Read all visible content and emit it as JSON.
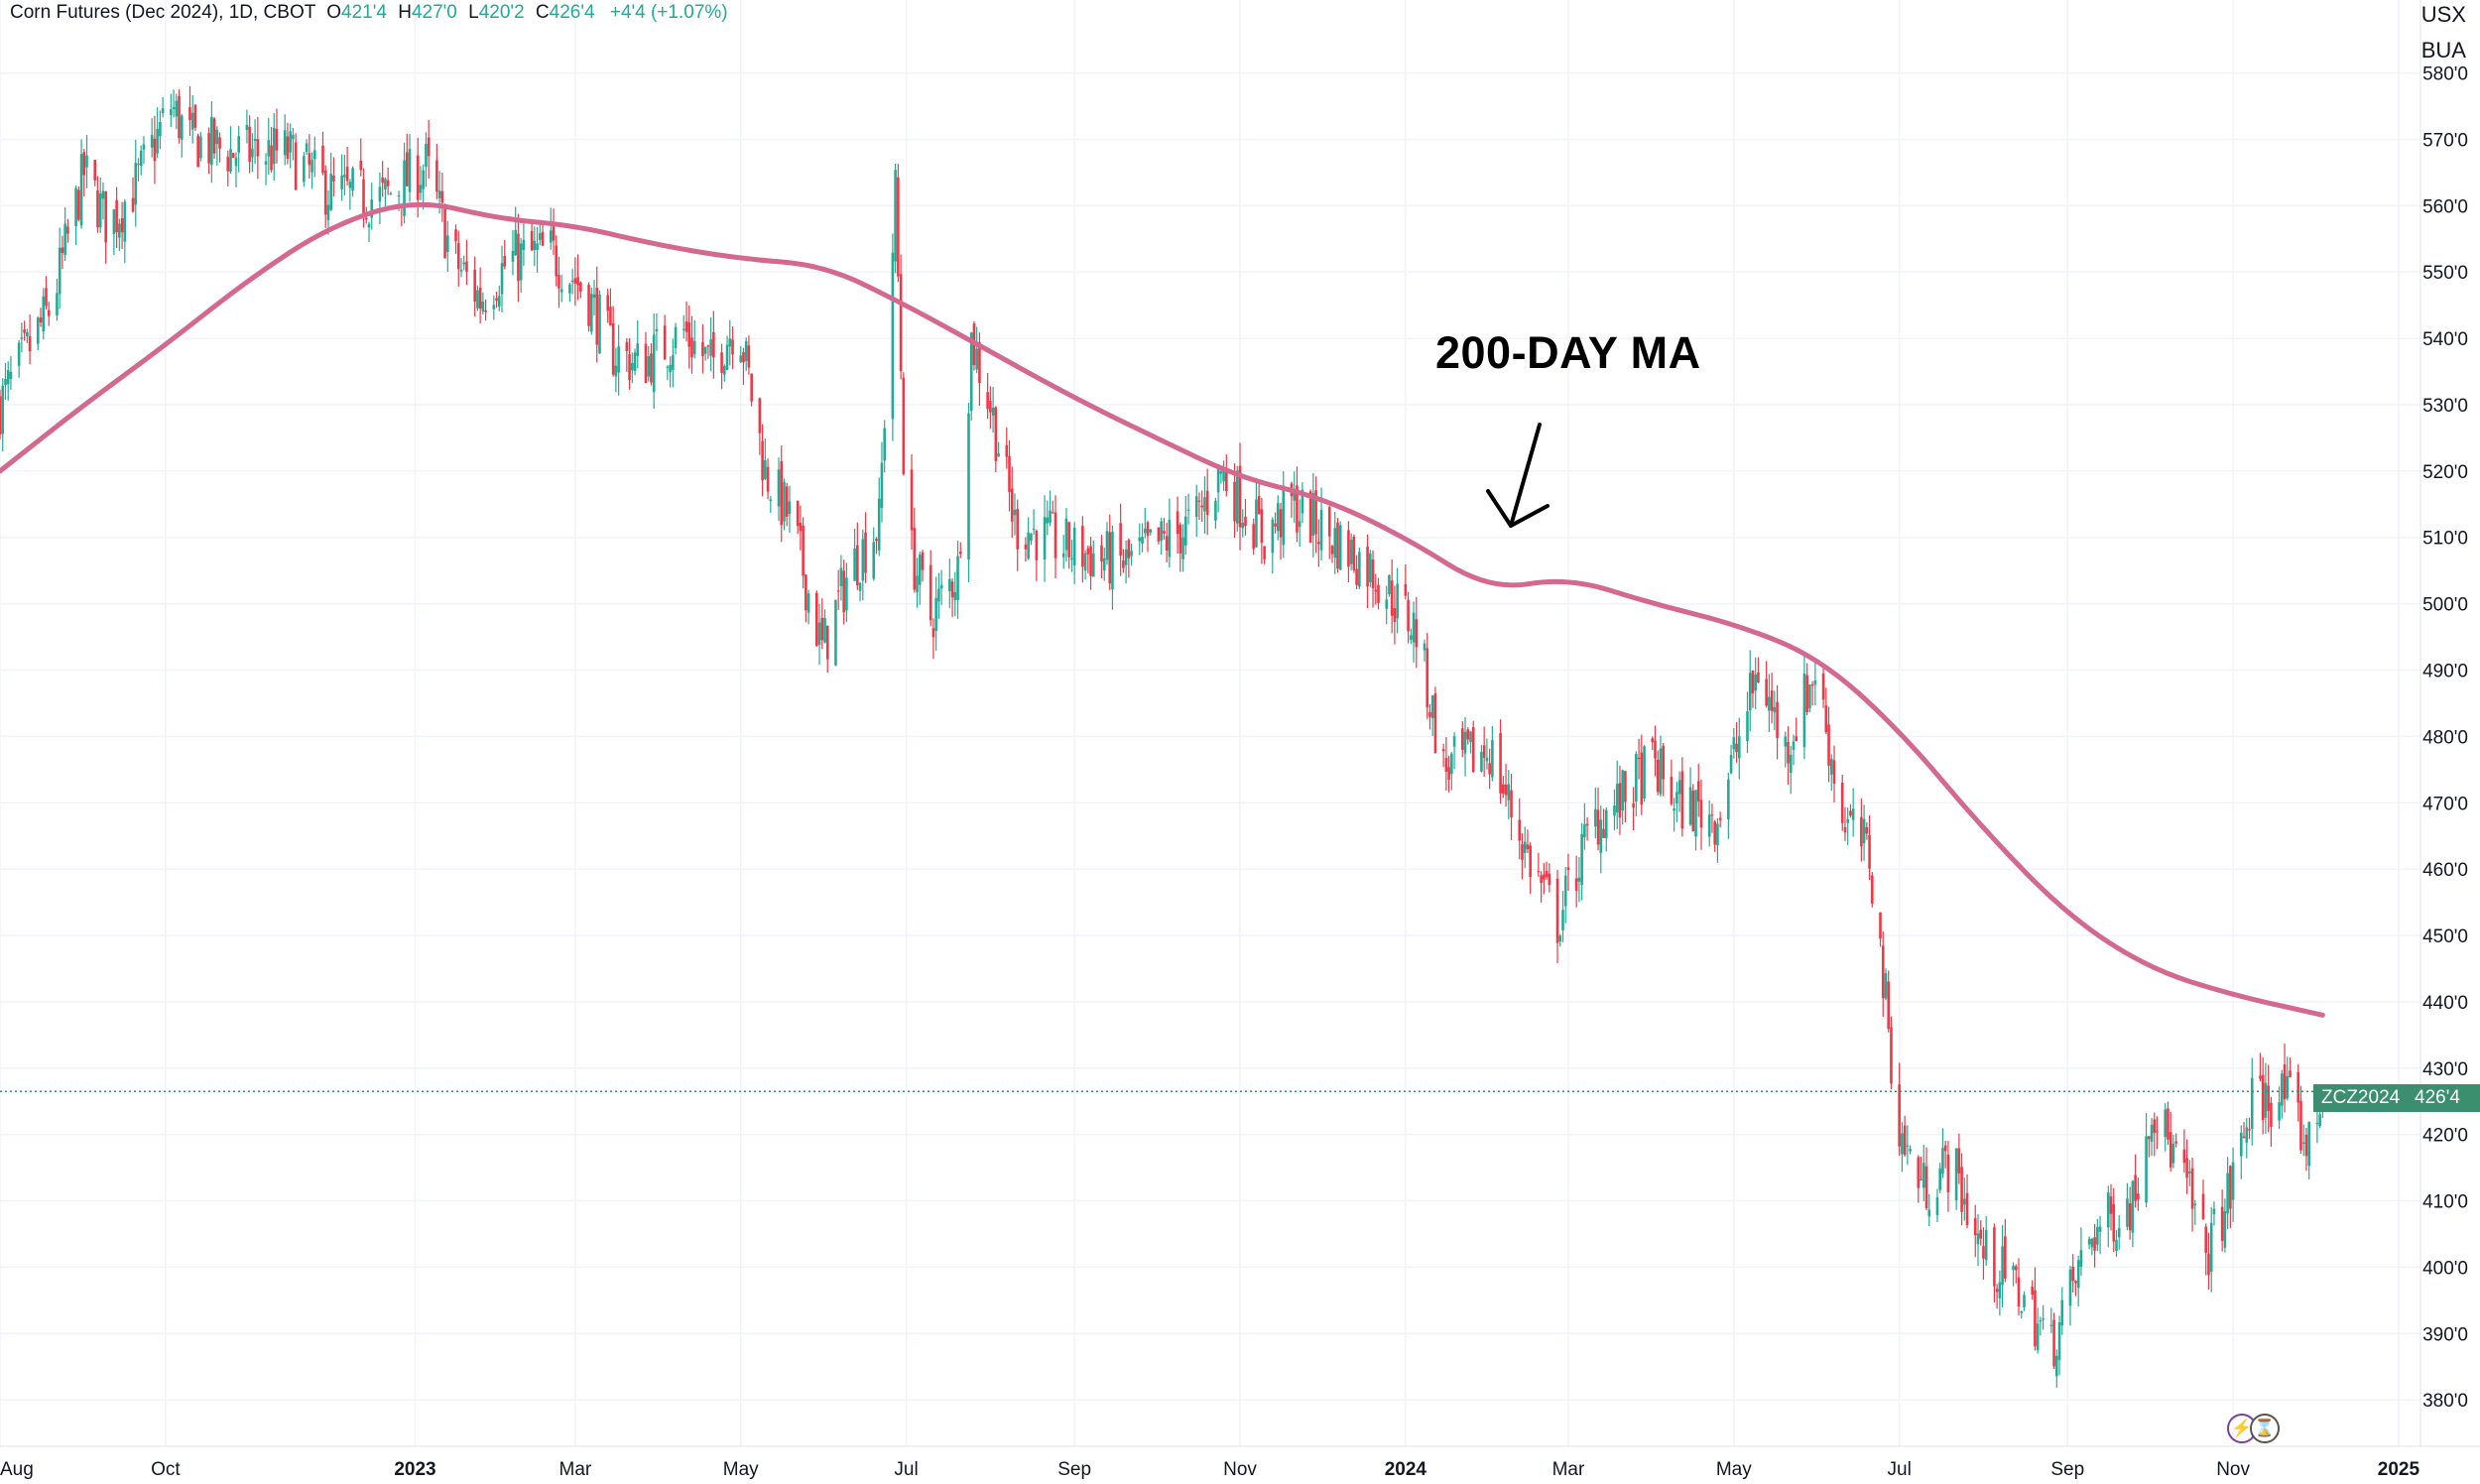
{
  "header": {
    "symbol_desc": "Corn Futures (Dec 2024), 1D, CBOT",
    "o_label": "O",
    "o_val": "421'4",
    "h_label": "H",
    "h_val": "427'0",
    "l_label": "L",
    "l_val": "420'2",
    "c_label": "C",
    "c_val": "426'4",
    "change": "+4'4 (+1.07%)"
  },
  "units": {
    "currency": "USX",
    "measure": "BUA"
  },
  "annotation": {
    "text": "200-DAY MA"
  },
  "price_tag": {
    "symbol": "ZCZ2024",
    "value": "426'4"
  },
  "colors": {
    "up": "#22ab94",
    "down": "#f23645",
    "ma": "#d4688f",
    "tag": "#3b8f6f",
    "grid": "#f0f3fa"
  },
  "icons": [
    "lightning-icon",
    "hourglass-icon"
  ],
  "chart_data": {
    "type": "candlestick",
    "title": "Corn Futures (Dec 2024), 1D, CBOT",
    "price_axis": {
      "ticks": [
        380,
        390,
        400,
        410,
        420,
        430,
        440,
        450,
        460,
        470,
        480,
        490,
        500,
        510,
        520,
        530,
        540,
        550,
        560,
        570,
        580
      ],
      "labels": [
        "380'0",
        "390'0",
        "400'0",
        "410'0",
        "420'0",
        "430'0",
        "440'0",
        "450'0",
        "460'0",
        "470'0",
        "480'0",
        "490'0",
        "500'0",
        "510'0",
        "520'0",
        "530'0",
        "540'0",
        "550'0",
        "560'0",
        "570'0",
        "580'0"
      ],
      "range": [
        373,
        591
      ]
    },
    "time_axis": {
      "range": [
        "2022-08-01",
        "2025-01-31"
      ],
      "ticks": [
        {
          "label": "Aug",
          "date": "2022-08-01"
        },
        {
          "label": "Oct",
          "date": "2022-10-01"
        },
        {
          "label": "2023",
          "date": "2023-01-01",
          "bold": true
        },
        {
          "label": "Mar",
          "date": "2023-03-01"
        },
        {
          "label": "May",
          "date": "2023-05-01"
        },
        {
          "label": "Jul",
          "date": "2023-07-01"
        },
        {
          "label": "Sep",
          "date": "2023-09-01"
        },
        {
          "label": "Nov",
          "date": "2023-11-01"
        },
        {
          "label": "2024",
          "date": "2024-01-01",
          "bold": true
        },
        {
          "label": "Mar",
          "date": "2024-03-01"
        },
        {
          "label": "May",
          "date": "2024-05-01"
        },
        {
          "label": "Jul",
          "date": "2024-07-01"
        },
        {
          "label": "Sep",
          "date": "2024-09-01"
        },
        {
          "label": "Nov",
          "date": "2024-11-01"
        },
        {
          "label": "2025",
          "date": "2025-01-01",
          "bold": true
        }
      ]
    },
    "last_close": 426.5,
    "price_path": [
      [
        "2022-08-01",
        530
      ],
      [
        "2022-08-20",
        545
      ],
      [
        "2022-09-01",
        565
      ],
      [
        "2022-09-10",
        557
      ],
      [
        "2022-09-20",
        563
      ],
      [
        "2022-10-03",
        575
      ],
      [
        "2022-10-10",
        570
      ],
      [
        "2022-10-25",
        568
      ],
      [
        "2022-11-15",
        568
      ],
      [
        "2022-12-01",
        562
      ],
      [
        "2022-12-20",
        561
      ],
      [
        "2023-01-05",
        566
      ],
      [
        "2023-01-15",
        552
      ],
      [
        "2023-01-25",
        546
      ],
      [
        "2023-02-05",
        552
      ],
      [
        "2023-02-20",
        553
      ],
      [
        "2023-03-05",
        547
      ],
      [
        "2023-03-15",
        538
      ],
      [
        "2023-03-25",
        536
      ],
      [
        "2023-04-10",
        541
      ],
      [
        "2023-04-20",
        536
      ],
      [
        "2023-04-30",
        543
      ],
      [
        "2023-05-10",
        520
      ],
      [
        "2023-05-20",
        512
      ],
      [
        "2023-05-31",
        493
      ],
      [
        "2023-06-10",
        505
      ],
      [
        "2023-06-21",
        512
      ],
      [
        "2023-06-27",
        562
      ],
      [
        "2023-07-01",
        510
      ],
      [
        "2023-07-10",
        498
      ],
      [
        "2023-07-20",
        505
      ],
      [
        "2023-07-25",
        540
      ],
      [
        "2023-08-01",
        530
      ],
      [
        "2023-08-10",
        512
      ],
      [
        "2023-09-01",
        508
      ],
      [
        "2023-09-20",
        506
      ],
      [
        "2023-10-15",
        512
      ],
      [
        "2023-10-25",
        520
      ],
      [
        "2023-11-10",
        510
      ],
      [
        "2023-11-20",
        515
      ],
      [
        "2023-12-05",
        510
      ],
      [
        "2023-12-20",
        505
      ],
      [
        "2024-01-05",
        496
      ],
      [
        "2024-01-15",
        475
      ],
      [
        "2024-02-01",
        478
      ],
      [
        "2024-02-15",
        462
      ],
      [
        "2024-02-26",
        452
      ],
      [
        "2024-03-10",
        467
      ],
      [
        "2024-03-20",
        470
      ],
      [
        "2024-04-01",
        476
      ],
      [
        "2024-04-10",
        470
      ],
      [
        "2024-04-25",
        468
      ],
      [
        "2024-05-10",
        490
      ],
      [
        "2024-05-20",
        478
      ],
      [
        "2024-05-31",
        490
      ],
      [
        "2024-06-10",
        468
      ],
      [
        "2024-06-20",
        462
      ],
      [
        "2024-06-26",
        440
      ],
      [
        "2024-07-01",
        420
      ],
      [
        "2024-07-10",
        412
      ],
      [
        "2024-07-20",
        416
      ],
      [
        "2024-08-01",
        402
      ],
      [
        "2024-08-15",
        396
      ],
      [
        "2024-08-26",
        388
      ],
      [
        "2024-09-10",
        405
      ],
      [
        "2024-09-25",
        410
      ],
      [
        "2024-10-02",
        425
      ],
      [
        "2024-10-15",
        412
      ],
      [
        "2024-10-22",
        402
      ],
      [
        "2024-10-30",
        410
      ],
      [
        "2024-11-08",
        425
      ],
      [
        "2024-11-20",
        426
      ],
      [
        "2024-11-29",
        418
      ],
      [
        "2024-12-04",
        426.5
      ]
    ],
    "moving_average": {
      "name": "200-DAY MA",
      "points": [
        [
          "2022-08-01",
          520
        ],
        [
          "2022-09-01",
          530
        ],
        [
          "2022-10-01",
          539
        ],
        [
          "2022-11-01",
          549
        ],
        [
          "2022-12-01",
          557
        ],
        [
          "2023-01-01",
          561
        ],
        [
          "2023-02-01",
          558
        ],
        [
          "2023-03-01",
          557
        ],
        [
          "2023-04-01",
          554
        ],
        [
          "2023-05-01",
          552
        ],
        [
          "2023-06-01",
          551
        ],
        [
          "2023-07-01",
          545
        ],
        [
          "2023-08-01",
          538
        ],
        [
          "2023-09-01",
          531
        ],
        [
          "2023-10-01",
          525
        ],
        [
          "2023-11-01",
          519
        ],
        [
          "2023-12-01",
          516
        ],
        [
          "2024-01-01",
          510
        ],
        [
          "2024-02-01",
          502
        ],
        [
          "2024-03-01",
          504
        ],
        [
          "2024-04-01",
          500
        ],
        [
          "2024-05-01",
          497
        ],
        [
          "2024-06-01",
          492
        ],
        [
          "2024-07-01",
          481
        ],
        [
          "2024-08-01",
          466
        ],
        [
          "2024-09-01",
          453
        ],
        [
          "2024-10-01",
          445
        ],
        [
          "2024-11-01",
          441
        ],
        [
          "2024-12-04",
          438
        ]
      ]
    }
  }
}
